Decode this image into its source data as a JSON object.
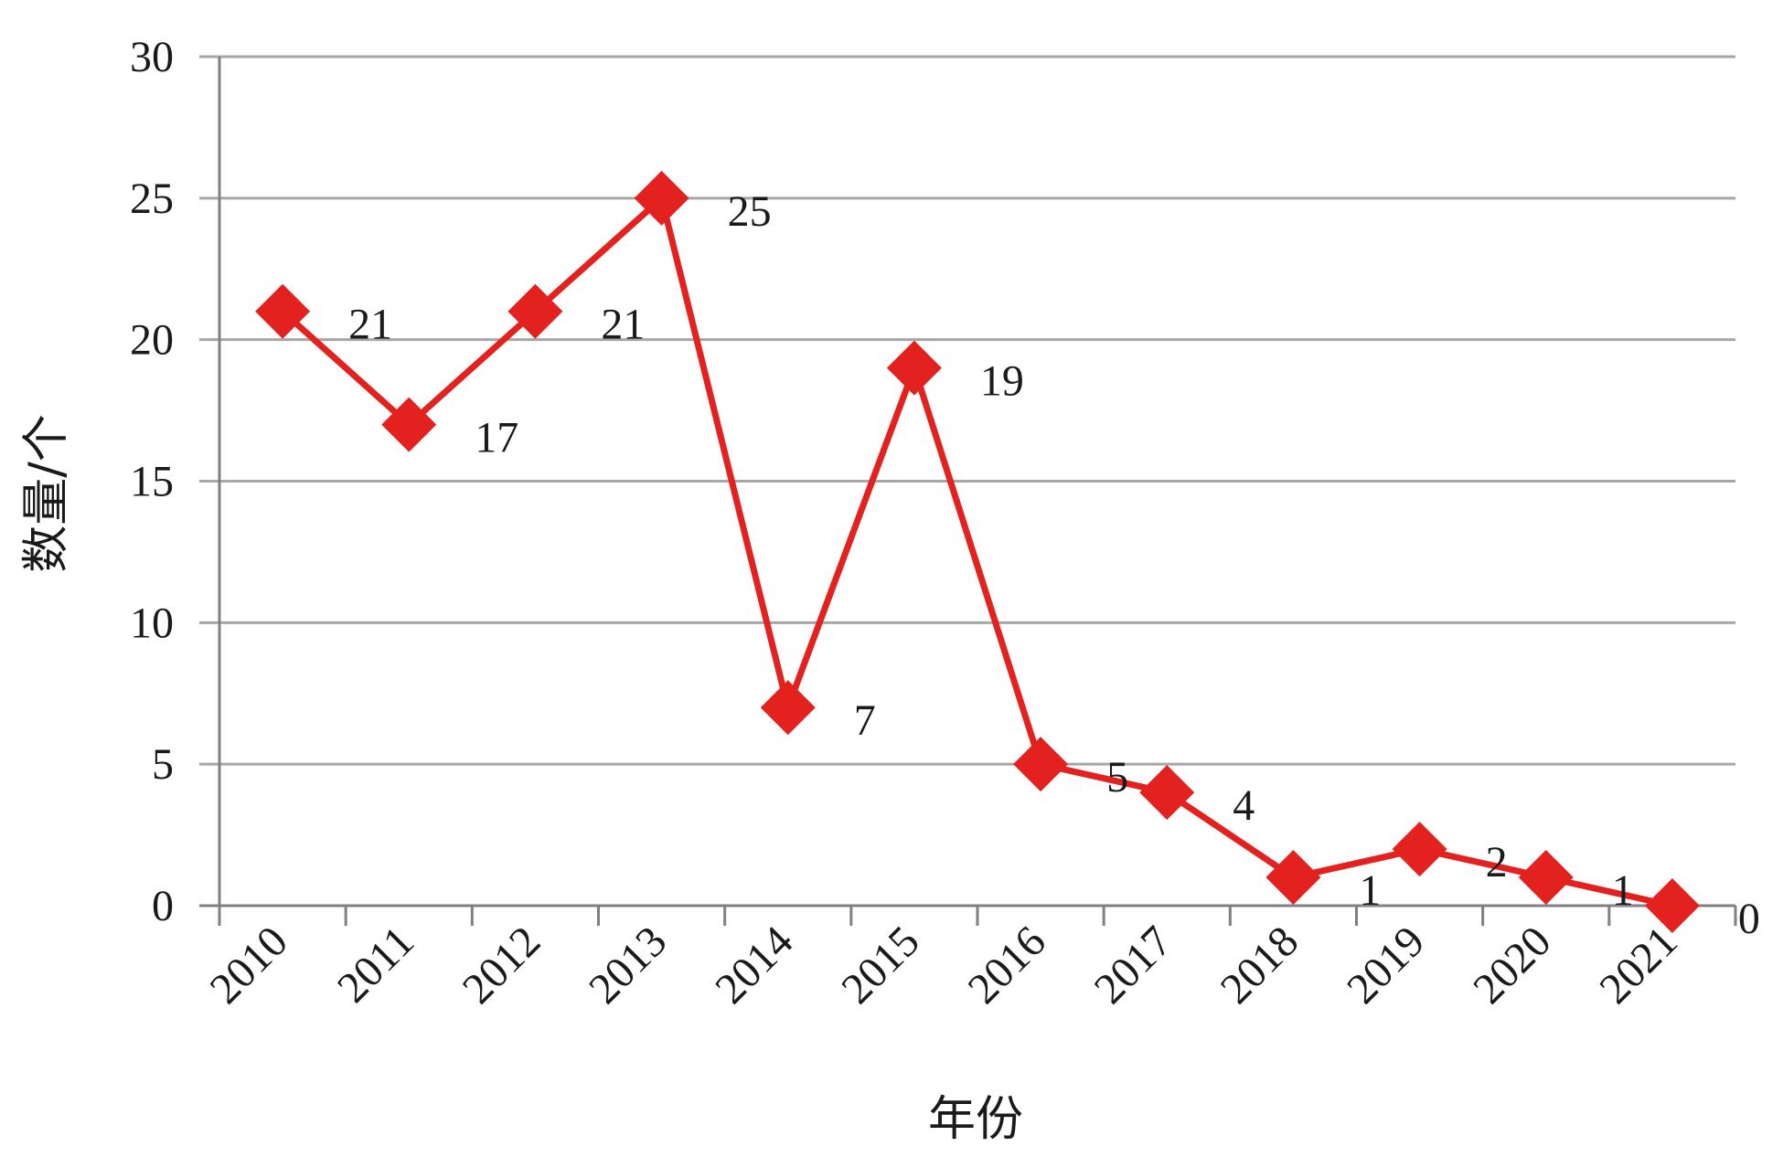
{
  "chart_data": {
    "type": "line",
    "title": "",
    "xlabel": "年份",
    "ylabel": "数量/个",
    "categories": [
      "2010",
      "2011",
      "2012",
      "2013",
      "2014",
      "2015",
      "2016",
      "2017",
      "2018",
      "2019",
      "2020",
      "2021"
    ],
    "series": [
      {
        "values": [
          21,
          17,
          21,
          25,
          7,
          19,
          5,
          4,
          1,
          2,
          1,
          0
        ]
      }
    ],
    "data_labels": [
      "21",
      "17",
      "21",
      "25",
      "7",
      "19",
      "5",
      "4",
      "1",
      "2",
      "1",
      "0"
    ],
    "yticks": [
      "0",
      "5",
      "10",
      "15",
      "20",
      "25",
      "30"
    ],
    "ylim": [
      0,
      30
    ],
    "grid": true,
    "marker": "diamond",
    "colors": {
      "series": "#e3211e",
      "grid": "#a6a6a6",
      "axis": "#808080"
    }
  }
}
